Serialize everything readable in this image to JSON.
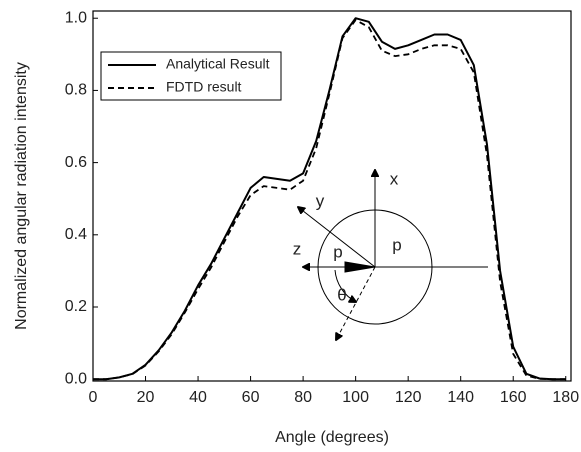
{
  "chart_data": {
    "type": "line",
    "xlabel": "Angle (degrees)",
    "ylabel": "Normalized angular radiation intensity",
    "x": [
      0,
      5,
      10,
      15,
      20,
      25,
      30,
      35,
      40,
      45,
      50,
      55,
      60,
      65,
      70,
      75,
      80,
      85,
      90,
      95,
      100,
      105,
      110,
      115,
      120,
      125,
      130,
      135,
      140,
      145,
      150,
      155,
      160,
      165,
      170,
      175,
      180
    ],
    "series": [
      {
        "name": "Analytical Result",
        "color": "#000000",
        "dash": "solid",
        "values": [
          0,
          0,
          0.005,
          0.015,
          0.04,
          0.08,
          0.13,
          0.19,
          0.26,
          0.32,
          0.39,
          0.46,
          0.53,
          0.56,
          0.555,
          0.55,
          0.57,
          0.66,
          0.8,
          0.95,
          1.0,
          0.99,
          0.935,
          0.915,
          0.925,
          0.94,
          0.955,
          0.955,
          0.94,
          0.87,
          0.65,
          0.3,
          0.09,
          0.015,
          0.002,
          0,
          0
        ]
      },
      {
        "name": "FDTD result",
        "color": "#000000",
        "dash": "dashed",
        "values": [
          0,
          0,
          0.005,
          0.014,
          0.038,
          0.077,
          0.125,
          0.185,
          0.25,
          0.31,
          0.38,
          0.45,
          0.51,
          0.535,
          0.53,
          0.525,
          0.55,
          0.64,
          0.79,
          0.945,
          0.995,
          0.975,
          0.91,
          0.895,
          0.9,
          0.915,
          0.925,
          0.925,
          0.915,
          0.85,
          0.62,
          0.27,
          0.07,
          0.01,
          0.001,
          0,
          0
        ]
      }
    ],
    "xlim": [
      0,
      182
    ],
    "xticks": [
      0,
      20,
      40,
      60,
      80,
      100,
      120,
      140,
      160,
      180
    ],
    "ylim": [
      -0.005,
      1.02
    ],
    "yticks": [
      {
        "value": 0,
        "label": "0.0"
      },
      0.2,
      0.4,
      0.6,
      0.8,
      {
        "value": 1,
        "label": "1.0"
      }
    ],
    "legend": "upper left",
    "annotations": [
      "x",
      "y",
      "z",
      "p",
      "p",
      "θ"
    ]
  }
}
